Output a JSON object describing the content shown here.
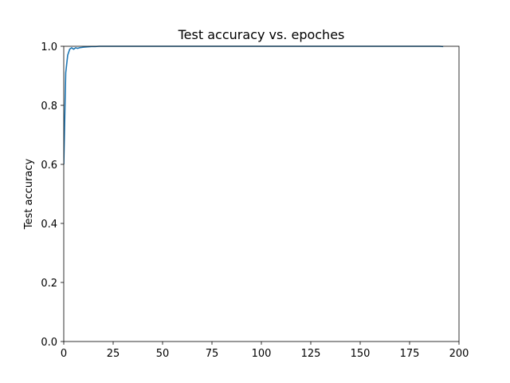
{
  "chart_data": {
    "type": "line",
    "title": "Test accuracy vs. epoches",
    "xlabel": "",
    "ylabel": "Test accuracy",
    "xlim": [
      0,
      200
    ],
    "ylim": [
      0.0,
      1.0
    ],
    "x_ticks": [
      0,
      25,
      50,
      75,
      100,
      125,
      150,
      175,
      200
    ],
    "y_ticks": [
      0.0,
      0.2,
      0.4,
      0.6,
      0.8,
      1.0
    ],
    "x_tick_labels": [
      "0",
      "25",
      "50",
      "75",
      "100",
      "125",
      "150",
      "175",
      "200"
    ],
    "y_tick_labels": [
      "0.0",
      "0.2",
      "0.4",
      "0.6",
      "0.8",
      "1.0"
    ],
    "grid": false,
    "series": [
      {
        "color": "#1f77b4",
        "x": [
          0,
          1,
          2,
          3,
          4,
          5,
          6,
          7,
          8,
          9,
          10,
          12,
          14,
          16,
          18,
          20,
          25,
          30,
          40,
          50,
          60,
          70,
          80,
          90,
          100,
          110,
          120,
          130,
          140,
          150,
          160,
          170,
          180,
          190,
          192
        ],
        "y": [
          0.6,
          0.91,
          0.97,
          0.99,
          0.995,
          0.99,
          0.995,
          0.993,
          0.995,
          0.996,
          0.997,
          0.998,
          0.999,
          0.999,
          1.0,
          1.0,
          1.0,
          1.0,
          1.0,
          1.0,
          1.0,
          1.0,
          1.0,
          1.0,
          1.0,
          1.0,
          1.0,
          1.0,
          1.0,
          1.0,
          1.0,
          1.0,
          1.0,
          1.0,
          0.999
        ]
      }
    ]
  }
}
